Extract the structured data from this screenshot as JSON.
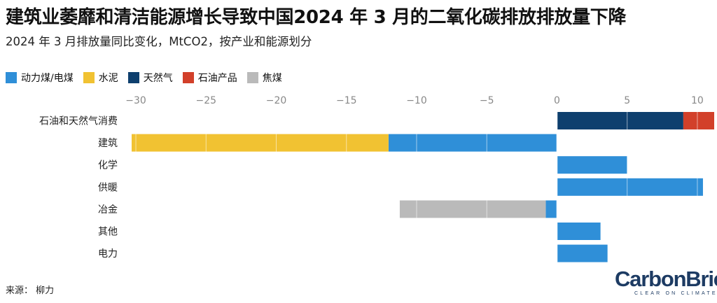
{
  "title": "建筑业萎靡和清洁能源增长导致中国2024 年 3 月的二氧化碳排放排放量下降",
  "subtitle": "2024 年 3 月排放量同比变化，MtCO2，按产业和能源划分",
  "source": "来源： 柳力",
  "logo": {
    "main": "CarbonBrief",
    "sub": "CLEAR ON CLIMATE"
  },
  "chart_data": {
    "type": "bar",
    "orientation": "horizontal",
    "stacked": true,
    "categories": [
      "石油和天然气消费",
      "建筑",
      "化学",
      "供暖",
      "冶金",
      "其他",
      "电力"
    ],
    "series": [
      {
        "name": "动力煤/电煤",
        "color": "#2f8fd8",
        "values": [
          0,
          -12,
          5,
          10.4,
          -0.8,
          3.1,
          3.6
        ]
      },
      {
        "name": "水泥",
        "color": "#f1c232",
        "values": [
          0,
          -18.3,
          0,
          0,
          0,
          0,
          0
        ]
      },
      {
        "name": "天然气",
        "color": "#0e3f6e",
        "values": [
          9,
          0,
          0,
          0,
          0,
          0,
          0
        ]
      },
      {
        "name": "石油产品",
        "color": "#d2402a",
        "values": [
          2.2,
          0,
          0,
          0,
          0,
          0,
          0
        ]
      },
      {
        "name": "焦煤",
        "color": "#bababa",
        "values": [
          0,
          0,
          0,
          0,
          -10.4,
          0,
          0
        ]
      }
    ],
    "xlim": [
      -30.8,
      11.3
    ],
    "ticks": [
      -30,
      -25,
      -20,
      -15,
      -10,
      -5,
      0,
      5,
      10
    ],
    "tick_labels": [
      "−30",
      "−25",
      "−20",
      "−15",
      "−10",
      "−5",
      "0",
      "5",
      "10"
    ],
    "legend_position": "top-left",
    "axis_position": "top",
    "grid": true
  }
}
